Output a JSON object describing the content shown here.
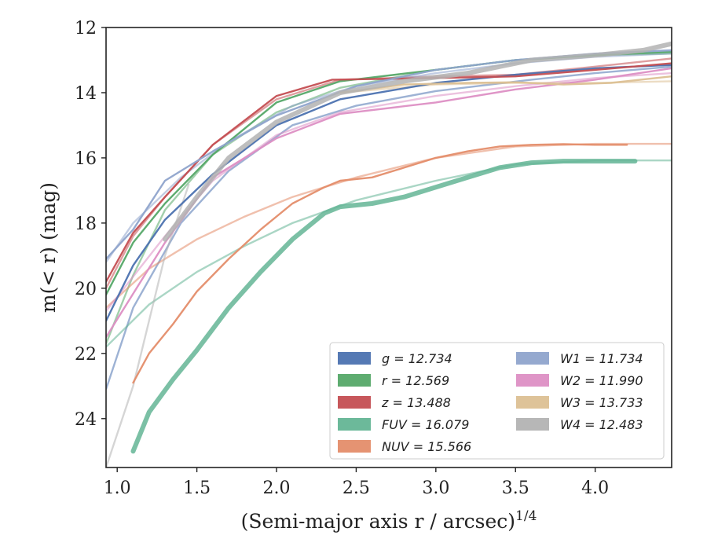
{
  "chart_data": {
    "type": "line",
    "xlabel": "(Semi-major axis r / arcsec)",
    "xlabel_sup": "1/4",
    "ylabel": "m(< r) (mag)",
    "xlim": [
      0.93,
      4.48
    ],
    "ylim": [
      25.5,
      12.0
    ],
    "y_inverted": true,
    "xticks": [
      1.0,
      1.5,
      2.0,
      2.5,
      3.0,
      3.5,
      4.0
    ],
    "xtick_labels": [
      "1.0",
      "1.5",
      "2.0",
      "2.5",
      "3.0",
      "3.5",
      "4.0"
    ],
    "yticks": [
      12,
      14,
      16,
      18,
      20,
      22,
      24
    ],
    "ytick_labels": [
      "12",
      "14",
      "16",
      "18",
      "20",
      "22",
      "24"
    ],
    "grid": false,
    "legend_position": "lower-right",
    "series": [
      {
        "name": "g",
        "value_label": "12.734",
        "color": "#4c72b0",
        "x": [
          0.93,
          1.1,
          1.3,
          1.6,
          2.0,
          2.4,
          3.0,
          3.5,
          4.0,
          4.48
        ],
        "y": [
          21.0,
          19.3,
          17.9,
          16.5,
          15.0,
          14.2,
          13.7,
          13.45,
          13.25,
          13.15
        ],
        "model_x": [
          0.93,
          1.1,
          1.4,
          1.7,
          2.1,
          2.5,
          3.0,
          3.6,
          4.0,
          4.48
        ],
        "model_y": [
          23.1,
          20.6,
          18.0,
          16.4,
          15.0,
          14.4,
          13.95,
          13.6,
          13.4,
          13.2
        ]
      },
      {
        "name": "r",
        "value_label": "12.569",
        "color": "#55a868",
        "x": [
          0.93,
          1.1,
          1.3,
          1.6,
          2.0,
          2.4,
          3.0,
          3.5,
          4.0,
          4.48
        ],
        "y": [
          20.2,
          18.6,
          17.4,
          15.9,
          14.3,
          13.65,
          13.3,
          13.0,
          12.85,
          12.75
        ],
        "model_x": [
          0.93,
          1.1,
          1.3,
          1.6,
          2.0,
          2.4,
          3.0,
          3.5,
          4.0,
          4.48
        ],
        "model_y": [
          21.7,
          19.6,
          17.6,
          15.9,
          14.6,
          13.85,
          13.3,
          13.0,
          12.85,
          12.8
        ]
      },
      {
        "name": "z",
        "value_label": "13.488",
        "color": "#c44e52",
        "x": [
          0.93,
          1.1,
          1.3,
          1.6,
          2.0,
          2.35,
          3.0,
          3.5,
          4.0,
          4.48
        ],
        "y": [
          19.8,
          18.3,
          17.2,
          15.6,
          14.1,
          13.6,
          13.55,
          13.5,
          13.3,
          13.1
        ],
        "model_x": [
          0.93,
          1.1,
          1.3,
          1.6,
          2.0,
          2.4,
          3.0,
          3.5,
          4.0,
          4.48
        ],
        "model_y": [
          20.0,
          18.4,
          17.2,
          15.6,
          14.2,
          13.6,
          13.5,
          13.45,
          13.2,
          12.95
        ]
      },
      {
        "name": "FUV",
        "value_label": "16.079",
        "color": "#64b595",
        "x": [
          1.1,
          1.2,
          1.35,
          1.5,
          1.7,
          1.9,
          2.1,
          2.3,
          2.4,
          2.6,
          2.8,
          3.0,
          3.2,
          3.4,
          3.6,
          3.8,
          4.0,
          4.25
        ],
        "y": [
          25.0,
          23.8,
          22.8,
          21.9,
          20.6,
          19.5,
          18.5,
          17.7,
          17.5,
          17.4,
          17.2,
          16.9,
          16.6,
          16.3,
          16.15,
          16.1,
          16.1,
          16.1
        ],
        "model_x": [
          0.93,
          1.2,
          1.5,
          1.8,
          2.1,
          2.5,
          3.0,
          3.5,
          4.0,
          4.48
        ],
        "model_y": [
          21.8,
          20.5,
          19.5,
          18.7,
          18.0,
          17.3,
          16.7,
          16.2,
          16.08,
          16.08
        ]
      },
      {
        "name": "NUV",
        "value_label": "15.566",
        "color": "#e48d6a",
        "x": [
          1.1,
          1.2,
          1.35,
          1.5,
          1.7,
          1.9,
          2.1,
          2.3,
          2.4,
          2.6,
          2.8,
          3.0,
          3.2,
          3.4,
          3.6,
          3.8,
          4.0,
          4.2
        ],
        "y": [
          22.9,
          22.0,
          21.1,
          20.1,
          19.1,
          18.2,
          17.4,
          16.9,
          16.7,
          16.6,
          16.3,
          16.0,
          15.8,
          15.65,
          15.6,
          15.58,
          15.6,
          15.6
        ],
        "model_x": [
          0.93,
          1.2,
          1.5,
          1.8,
          2.1,
          2.5,
          3.0,
          3.5,
          4.0,
          4.48
        ],
        "model_y": [
          20.6,
          19.4,
          18.5,
          17.8,
          17.2,
          16.6,
          16.0,
          15.65,
          15.57,
          15.57
        ]
      },
      {
        "name": "W1",
        "value_label": "11.734",
        "color": "#8fa4cc",
        "x": [
          0.93,
          1.1,
          1.3,
          1.6,
          2.0,
          2.5,
          3.0,
          3.5,
          4.0,
          4.48
        ],
        "y": [
          19.1,
          18.2,
          16.7,
          15.8,
          14.7,
          13.8,
          13.3,
          13.0,
          12.8,
          12.7
        ],
        "model_x": [
          0.93,
          1.1,
          1.4,
          1.7,
          2.1,
          2.5,
          3.0,
          3.5,
          4.0,
          4.48
        ],
        "model_y": [
          19.2,
          18.0,
          16.6,
          15.5,
          14.4,
          13.8,
          13.4,
          13.1,
          12.9,
          12.8
        ]
      },
      {
        "name": "W2",
        "value_label": "11.990",
        "color": "#dd8fc4",
        "x": [
          0.93,
          1.3,
          1.6,
          2.0,
          2.4,
          3.0,
          3.5,
          4.0,
          4.48
        ],
        "y": [
          21.5,
          18.6,
          16.6,
          15.4,
          14.65,
          14.3,
          13.9,
          13.6,
          13.25
        ],
        "model_x": [
          0.93,
          1.3,
          1.6,
          2.0,
          2.4,
          3.0,
          3.5,
          4.0,
          4.48
        ],
        "model_y": [
          20.7,
          18.4,
          16.7,
          15.3,
          14.6,
          14.1,
          13.8,
          13.55,
          13.4
        ]
      },
      {
        "name": "W3",
        "value_label": "13.733",
        "color": "#dcc094",
        "x": [
          2.4,
          2.8,
          3.2,
          3.5,
          3.8,
          4.1,
          4.48
        ],
        "y": [
          14.0,
          13.75,
          13.7,
          13.68,
          13.75,
          13.7,
          13.5
        ],
        "model_x": [
          2.4,
          3.0,
          3.5,
          4.0,
          4.48
        ],
        "model_y": [
          14.0,
          13.75,
          13.7,
          13.7,
          13.65
        ]
      },
      {
        "name": "W4",
        "value_label": "12.483",
        "color": "#b3b3b3",
        "x": [
          1.3,
          1.5,
          1.7,
          2.0,
          2.4,
          2.8,
          3.2,
          3.6,
          4.0,
          4.3,
          4.48
        ],
        "y": [
          18.5,
          17.2,
          16.0,
          14.9,
          14.0,
          13.65,
          13.4,
          13.0,
          12.85,
          12.7,
          12.5
        ],
        "model_x": [
          0.93,
          1.1,
          1.3,
          1.45
        ],
        "model_y": [
          25.5,
          23.0,
          19.0,
          16.8
        ]
      }
    ],
    "legend_left": [
      "g",
      "r",
      "z",
      "FUV",
      "NUV"
    ],
    "legend_right": [
      "W1",
      "W2",
      "W3",
      "W4"
    ]
  }
}
